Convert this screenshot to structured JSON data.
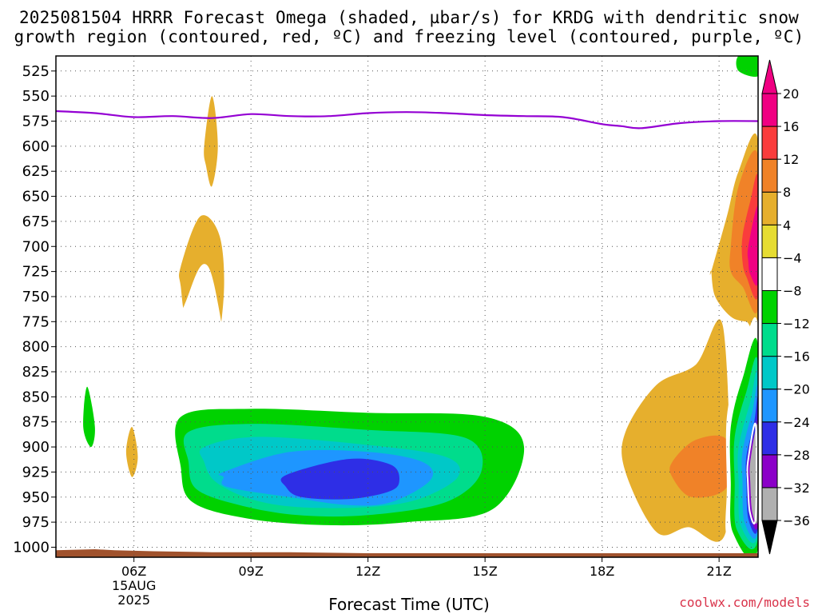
{
  "title_line1": "2025081504 HRRR Forecast Omega (shaded, µbar/s) for KRDG with dendritic snow",
  "title_line2": "growth region (contoured, red, ºC) and freezing level (contoured, purple, ºC)",
  "credit": "coolwx.com/models",
  "chart_data": {
    "type": "heatmap",
    "xlabel": "Forecast Time (UTC)",
    "x_unit": "forecast hour",
    "xlim": [
      4,
      22
    ],
    "x_ticks": [
      {
        "x": 6,
        "label": "06Z",
        "sub": [
          "15AUG",
          "2025"
        ]
      },
      {
        "x": 9,
        "label": "09Z",
        "sub": []
      },
      {
        "x": 12,
        "label": "12Z",
        "sub": []
      },
      {
        "x": 15,
        "label": "15Z",
        "sub": []
      },
      {
        "x": 18,
        "label": "18Z",
        "sub": []
      },
      {
        "x": 21,
        "label": "21Z",
        "sub": []
      }
    ],
    "ylabel": "",
    "y_unit": "hPa",
    "ylim": [
      1010,
      510
    ],
    "y_ticks": [
      525,
      550,
      575,
      600,
      625,
      650,
      675,
      700,
      725,
      750,
      775,
      800,
      825,
      850,
      875,
      900,
      925,
      950,
      975,
      1000
    ],
    "grid": true,
    "colorbar": {
      "levels": [
        -36,
        -32,
        -28,
        -24,
        -20,
        -16,
        -12,
        -8,
        -4,
        4,
        8,
        12,
        16,
        20
      ],
      "colors": [
        "#b0b0b0",
        "#8b00c8",
        "#2e2ee6",
        "#1e96ff",
        "#00c8c8",
        "#00dc8c",
        "#00d200",
        "#ffffff",
        "#e6dc32",
        "#e6af2d",
        "#f08228",
        "#fa3c3c",
        "#f00082"
      ],
      "under_color": "#000000",
      "over_color": "#f00082"
    },
    "freezing_level": {
      "color": "#9400d3",
      "x": [
        4,
        5,
        6,
        7,
        8,
        9,
        10,
        11,
        12,
        13,
        14,
        15,
        16,
        17,
        18,
        18.5,
        19,
        20,
        21,
        22
      ],
      "p": [
        565,
        567,
        571,
        570,
        572,
        568,
        570,
        570,
        567,
        566,
        567,
        569,
        570,
        571,
        578,
        580,
        582,
        577,
        575,
        575
      ]
    },
    "omega_regions": [
      {
        "value": -8,
        "x": [
          4.5,
          5.4,
          5.0,
          4.5
        ],
        "p": [
          510,
          510,
          620,
          510
        ]
      },
      {
        "value": -8,
        "x": [
          16.9,
          17.2,
          17.2,
          17.05,
          16.9
        ],
        "p": [
          510,
          510,
          555,
          572,
          540
        ]
      },
      {
        "value": -8,
        "x": [
          20.1,
          22,
          22,
          21.7,
          20.1
        ],
        "p": [
          510,
          510,
          565,
          548,
          525
        ]
      },
      {
        "value": -12,
        "x": [
          21.5,
          22,
          22,
          21.5
        ],
        "p": [
          510,
          510,
          530,
          525
        ]
      },
      {
        "value": 4,
        "x": [
          7.8,
          8.0,
          8.15,
          8.0,
          7.85
        ],
        "p": [
          600,
          550,
          600,
          640,
          620
        ]
      },
      {
        "value": 4,
        "x": [
          7.2,
          7.7,
          8.2,
          8.3,
          8.0,
          7.4,
          7.2
        ],
        "p": [
          720,
          670,
          690,
          750,
          815,
          785,
          740
        ]
      },
      {
        "value": -8,
        "x": [
          12.0,
          13.3,
          14.2,
          13.8,
          12.0
        ],
        "p": [
          740,
          740,
          770,
          790,
          770
        ]
      },
      {
        "value": -8,
        "x": [
          4.4,
          5.5,
          6.6,
          7.2,
          7.9,
          8.7,
          10,
          13,
          15,
          16.5,
          17.2,
          18.1,
          17.5,
          16,
          14.8,
          12,
          10,
          8.5,
          7.5,
          6.5,
          6.5,
          7.7,
          6.8,
          5.6,
          5.3,
          5.4,
          5.2,
          4.8,
          4.4
        ],
        "p": [
          850,
          805,
          782,
          765,
          720,
          850,
          872,
          885,
          880,
          875,
          915,
          955,
          975,
          980,
          992,
          1000,
          1000,
          990,
          978,
          970,
          962,
          860,
          837,
          860,
          900,
          940,
          950,
          955,
          900
        ]
      },
      {
        "value": -12,
        "x": [
          4.8,
          5.0,
          4.9,
          4.7
        ],
        "p": [
          840,
          880,
          900,
          880
        ]
      },
      {
        "value": -12,
        "x": [
          7.2,
          9,
          12,
          15,
          16,
          15.2,
          13,
          11,
          9,
          7.5,
          7.2
        ],
        "p": [
          870,
          862,
          866,
          870,
          900,
          962,
          975,
          978,
          972,
          955,
          920
        ]
      },
      {
        "value": -16,
        "x": [
          7.4,
          9,
          12,
          14.5,
          14.9,
          14,
          12,
          10.2,
          8.7,
          7.6,
          7.4
        ],
        "p": [
          885,
          877,
          883,
          891,
          925,
          955,
          968,
          968,
          958,
          942,
          915
        ]
      },
      {
        "value": -20,
        "x": [
          7.8,
          9.2,
          12,
          14,
          14.3,
          13.3,
          12,
          10.2,
          9,
          8.1,
          7.8
        ],
        "p": [
          900,
          890,
          898,
          910,
          930,
          952,
          960,
          960,
          952,
          935,
          915
        ]
      },
      {
        "value": -24,
        "x": [
          8.3,
          10,
          12,
          13.4,
          13.6,
          12.6,
          11.5,
          10,
          8.4,
          8.3
        ],
        "p": [
          925,
          905,
          905,
          915,
          933,
          955,
          958,
          950,
          940,
          930
        ]
      },
      {
        "value": -28,
        "x": [
          9.9,
          11.5,
          12.6,
          12.8,
          12.5,
          11.5,
          10.3,
          9.9
        ],
        "p": [
          928,
          912,
          918,
          935,
          945,
          952,
          950,
          940
        ]
      },
      {
        "value": 4,
        "x": [
          5.8,
          5.95,
          6.1,
          5.95
        ],
        "p": [
          905,
          880,
          910,
          930
        ]
      },
      {
        "value": 4,
        "x": [
          18.6,
          19.4,
          20.4,
          21.1,
          21.2,
          20.2,
          19.4,
          18.6
        ],
        "p": [
          885,
          838,
          818,
          780,
          980,
          980,
          985,
          925
        ]
      },
      {
        "value": 8,
        "x": [
          19.8,
          20.4,
          21.2,
          21.2,
          20.3,
          19.8
        ],
        "p": [
          915,
          893,
          893,
          940,
          950,
          930
        ]
      },
      {
        "value": 4,
        "x": [
          20.8,
          21.2,
          21.5,
          22,
          22,
          21.7,
          21.3,
          20.9,
          20.8
        ],
        "p": [
          725,
          670,
          625,
          595,
          775,
          775,
          770,
          750,
          725
        ]
      },
      {
        "value": 8,
        "x": [
          21.3,
          21.5,
          22,
          22,
          21.6,
          21.3
        ],
        "p": [
          700,
          640,
          610,
          760,
          740,
          725
        ]
      },
      {
        "value": 12,
        "x": [
          21.6,
          21.8,
          22,
          22,
          21.7,
          21.6
        ],
        "p": [
          690,
          655,
          632,
          748,
          730,
          715
        ]
      },
      {
        "value": 16,
        "x": [
          21.75,
          22,
          22,
          21.8,
          21.75
        ],
        "p": [
          700,
          660,
          735,
          728,
          715
        ]
      },
      {
        "value": -8,
        "x": [
          21.2,
          21.5,
          22,
          22,
          21.7,
          21.2,
          21.2
        ],
        "p": [
          870,
          820,
          780,
          1010,
          1006,
          990,
          940
        ]
      },
      {
        "value": -12,
        "x": [
          21.3,
          21.6,
          22,
          22,
          21.35,
          21.3
        ],
        "p": [
          880,
          832,
          800,
          1000,
          985,
          935
        ]
      },
      {
        "value": -16,
        "x": [
          21.4,
          21.7,
          22,
          22,
          21.45,
          21.4
        ],
        "p": [
          890,
          845,
          818,
          990,
          982,
          935
        ]
      },
      {
        "value": -20,
        "x": [
          21.5,
          21.8,
          22,
          22,
          21.55,
          21.5
        ],
        "p": [
          900,
          855,
          830,
          985,
          978,
          935
        ]
      },
      {
        "value": -24,
        "x": [
          21.6,
          21.85,
          22,
          22,
          21.65,
          21.6
        ],
        "p": [
          905,
          865,
          845,
          982,
          975,
          935
        ]
      },
      {
        "value": -28,
        "x": [
          21.7,
          21.9,
          22,
          22,
          21.75,
          21.7
        ],
        "p": [
          910,
          875,
          855,
          978,
          972,
          935
        ]
      },
      {
        "value": -32,
        "x": [
          21.75,
          21.95,
          22,
          22,
          21.8,
          21.75
        ],
        "p": [
          912,
          880,
          862,
          975,
          968,
          935
        ]
      },
      {
        "value": -36,
        "x": [
          21.8,
          22,
          22,
          21.85,
          21.8
        ],
        "p": [
          915,
          878,
          970,
          965,
          935
        ]
      }
    ],
    "terrain": {
      "color": "#a0522d",
      "x": [
        4,
        5.0,
        5.5,
        6.5,
        8,
        10,
        12,
        16,
        20,
        22
      ],
      "p": [
        1003,
        1002,
        1003,
        1004,
        1005,
        1005,
        1006,
        1006,
        1006,
        1006
      ]
    }
  }
}
